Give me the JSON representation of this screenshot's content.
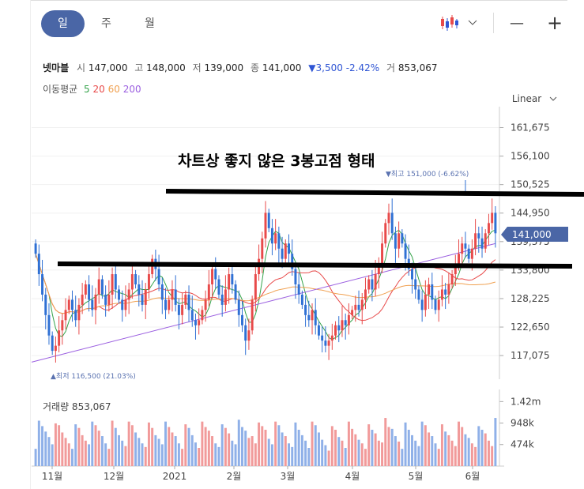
{
  "tabs": [
    "일",
    "주",
    "월"
  ],
  "active_tab": 0,
  "toolbar": {
    "chart_type_icon": "candlestick-icon",
    "zoom_out": "—",
    "zoom_in": "+"
  },
  "stock": {
    "name": "넷마블",
    "open_label": "시",
    "open": "147,000",
    "high_label": "고",
    "high": "148,000",
    "low_label": "저",
    "low": "139,000",
    "close_label": "종",
    "close": "141,000",
    "change": "▼3,500",
    "change_pct": "-2.42%",
    "volume_label": "거",
    "volume": "853,067"
  },
  "ma": {
    "label": "이동평균",
    "periods": [
      "5",
      "20",
      "60",
      "200"
    ],
    "colors": [
      "#34a34a",
      "#e84a4a",
      "#f0a050",
      "#9b5fe0"
    ]
  },
  "scale_mode": "Linear",
  "annotation": "차트상 좋지 않은 3봉고점 형태",
  "price_max_label": "▼최고 151,000 (-6.62%)",
  "price_min_label": "▲최저 116,500 (21.03%)",
  "current_price_tag": "141,000",
  "volume_title": "거래량 853,067",
  "chart_data": {
    "type": "candlestick",
    "y_ticks": [
      "161,675",
      "156,100",
      "150,525",
      "144,950",
      "139,375",
      "133,800",
      "128,225",
      "122,650",
      "117,075"
    ],
    "y_tick_values": [
      161675,
      156100,
      150525,
      144950,
      139375,
      133800,
      128225,
      122650,
      117075
    ],
    "ylim": [
      114000,
      165000
    ],
    "x_ticks": [
      "11월",
      "12월",
      "2021",
      "2월",
      "3월",
      "4월",
      "5월",
      "6월"
    ],
    "volume_ticks": [
      "1.42m",
      "948k",
      "474k"
    ],
    "volume_tick_values": [
      1420000,
      948000,
      474000
    ],
    "high": {
      "value": 151000,
      "label": "최고 151,000 (-6.62%)"
    },
    "low": {
      "value": 116500,
      "label": "최저 116,500 (21.03%)"
    },
    "last_close": 141000,
    "close_series": [
      137000,
      133000,
      129000,
      125000,
      121000,
      118000,
      119000,
      122000,
      124000,
      126000,
      128000,
      126000,
      124000,
      127000,
      129000,
      131000,
      128000,
      126000,
      129000,
      132000,
      129000,
      127000,
      129000,
      133000,
      130000,
      128000,
      126000,
      128000,
      130000,
      133000,
      131000,
      129000,
      127000,
      130000,
      133000,
      136000,
      134000,
      131000,
      128000,
      126000,
      128000,
      130000,
      127000,
      125000,
      127000,
      129000,
      126000,
      124000,
      123000,
      124000,
      126000,
      128000,
      131000,
      134000,
      132000,
      129000,
      127000,
      130000,
      133000,
      131000,
      128000,
      125000,
      123000,
      120000,
      122000,
      128000,
      133000,
      136000,
      140000,
      145000,
      142000,
      139000,
      141000,
      138000,
      136000,
      139000,
      137000,
      134000,
      131000,
      129000,
      127000,
      125000,
      124000,
      126000,
      123000,
      121000,
      120000,
      119000,
      120000,
      121000,
      123000,
      122000,
      124000,
      123000,
      125000,
      126000,
      127000,
      126000,
      128000,
      130000,
      132000,
      130000,
      133000,
      135000,
      139000,
      143000,
      145000,
      141000,
      138000,
      141000,
      139000,
      136000,
      134000,
      132000,
      130000,
      128000,
      126000,
      129000,
      131000,
      128000,
      126000,
      128000,
      130000,
      129000,
      131000,
      133000,
      135000,
      137000,
      139000,
      138000,
      136000,
      138000,
      141000,
      140000,
      138000,
      141000,
      143000,
      145000,
      141000
    ]
  }
}
